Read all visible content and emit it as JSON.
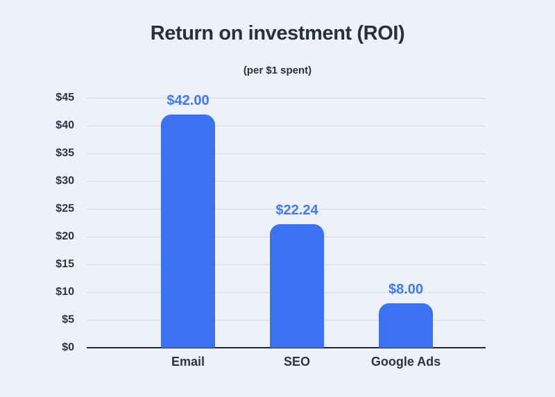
{
  "chart_data": {
    "type": "bar",
    "title": "Return on investment (ROI)",
    "subtitle": "(per $1 spent)",
    "categories": [
      "Email",
      "SEO",
      "Google Ads"
    ],
    "values": [
      42.0,
      22.24,
      8.0
    ],
    "value_labels": [
      "$42.00",
      "$22.24",
      "$8.00"
    ],
    "ylim": [
      0,
      45
    ],
    "ytick_step": 5,
    "ytick_labels": [
      "$0",
      "$5",
      "$10",
      "$15",
      "$20",
      "$25",
      "$30",
      "$35",
      "$40",
      "$45"
    ],
    "grid": "horizontal-only",
    "legend": "none",
    "colors": {
      "background": "#eef1fa",
      "bar": "#3b72f1",
      "value_label": "#3e79f6",
      "title_text": "#27313e",
      "tick_text": "#2b3444",
      "grid_line": "#d6dae3",
      "axis_line": "#20262f"
    }
  }
}
